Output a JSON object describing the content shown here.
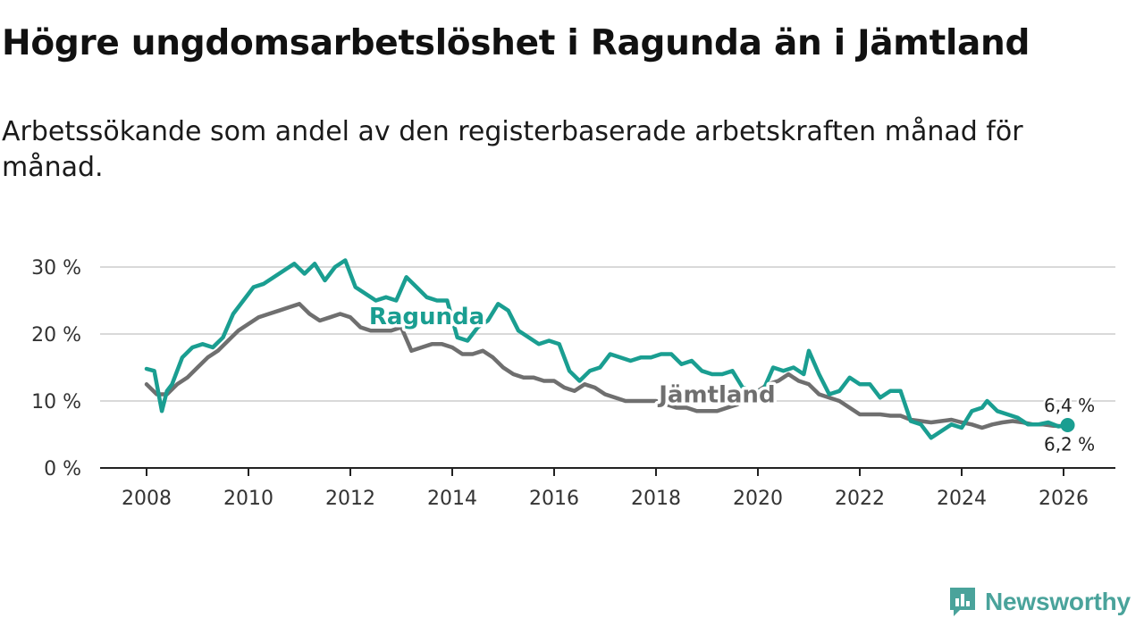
{
  "title": "Högre ungdomsarbetslöshet i Ragunda än i Jämtland",
  "subtitle": "Arbetssökande som andel av den registerbaserade arbetskraften månad för månad.",
  "brand": {
    "name": "Newsworthy",
    "icon": "newsworthy-logo-icon",
    "color": "#4aa39b"
  },
  "chart_data": {
    "type": "line",
    "title": "Högre ungdomsarbetslöshet i Ragunda än i Jämtland",
    "xlabel": "",
    "ylabel": "",
    "xlim": [
      2007.9,
      2026.2
    ],
    "ylim": [
      0,
      30
    ],
    "x_ticks": [
      2008,
      2010,
      2012,
      2014,
      2016,
      2018,
      2020,
      2022,
      2024,
      2026
    ],
    "x_tick_labels": [
      "2008",
      "2010",
      "2012",
      "2014",
      "2016",
      "2018",
      "2020",
      "2022",
      "2024",
      "2026"
    ],
    "y_ticks": [
      0,
      10,
      20,
      30
    ],
    "y_tick_labels": [
      "0 %",
      "10 %",
      "20 %",
      "30 %"
    ],
    "grid": "horizontal",
    "series": [
      {
        "name": "Ragunda",
        "color": "#1a9e91",
        "label_anchor": [
          2013.5,
          21.5
        ],
        "end_label": "6,4 %",
        "x": [
          2008.0,
          2008.15,
          2008.3,
          2008.4,
          2008.5,
          2008.7,
          2008.9,
          2009.1,
          2009.3,
          2009.5,
          2009.7,
          2009.9,
          2010.1,
          2010.3,
          2010.5,
          2010.7,
          2010.9,
          2011.1,
          2011.3,
          2011.5,
          2011.7,
          2011.9,
          2012.1,
          2012.3,
          2012.5,
          2012.7,
          2012.9,
          2013.1,
          2013.3,
          2013.5,
          2013.7,
          2013.9,
          2014.1,
          2014.3,
          2014.5,
          2014.7,
          2014.9,
          2015.1,
          2015.3,
          2015.5,
          2015.7,
          2015.9,
          2016.1,
          2016.3,
          2016.5,
          2016.7,
          2016.9,
          2017.1,
          2017.3,
          2017.5,
          2017.7,
          2017.9,
          2018.1,
          2018.3,
          2018.5,
          2018.7,
          2018.9,
          2019.1,
          2019.3,
          2019.5,
          2019.7,
          2019.9,
          2020.1,
          2020.3,
          2020.5,
          2020.7,
          2020.9,
          2021.0,
          2021.2,
          2021.4,
          2021.6,
          2021.8,
          2022.0,
          2022.2,
          2022.4,
          2022.6,
          2022.8,
          2023.0,
          2023.2,
          2023.4,
          2023.6,
          2023.8,
          2024.0,
          2024.2,
          2024.4,
          2024.5,
          2024.7,
          2024.9,
          2025.1,
          2025.3,
          2025.5,
          2025.7,
          2025.9,
          2026.08
        ],
        "values": [
          14.8,
          14.5,
          8.5,
          11.5,
          12.5,
          16.5,
          18.0,
          18.5,
          18.0,
          19.5,
          23.0,
          25.0,
          27.0,
          27.5,
          28.5,
          29.5,
          30.5,
          29.0,
          30.5,
          28.0,
          30.0,
          31.0,
          27.0,
          26.0,
          25.0,
          25.5,
          25.0,
          28.5,
          27.0,
          25.5,
          25.0,
          25.0,
          19.5,
          19.0,
          21.0,
          22.0,
          24.5,
          23.5,
          20.5,
          19.5,
          18.5,
          19.0,
          18.5,
          14.5,
          13.0,
          14.5,
          15.0,
          17.0,
          16.5,
          16.0,
          16.5,
          16.5,
          17.0,
          17.0,
          15.5,
          16.0,
          14.5,
          14.0,
          14.0,
          14.5,
          12.0,
          11.5,
          11.5,
          15.0,
          14.5,
          15.0,
          14.0,
          17.5,
          14.0,
          11.0,
          11.5,
          13.5,
          12.5,
          12.5,
          10.5,
          11.5,
          11.5,
          7.0,
          6.5,
          4.5,
          5.5,
          6.5,
          6.0,
          8.5,
          9.0,
          10.0,
          8.5,
          8.0,
          7.5,
          6.5,
          6.5,
          6.8,
          6.2,
          6.4
        ]
      },
      {
        "name": "Jämtland",
        "color": "#6f6f6f",
        "label_anchor": [
          2019.2,
          9.8
        ],
        "end_label": "6,2 %",
        "x": [
          2008.0,
          2008.2,
          2008.4,
          2008.6,
          2008.8,
          2009.0,
          2009.2,
          2009.4,
          2009.6,
          2009.8,
          2010.0,
          2010.2,
          2010.4,
          2010.6,
          2010.8,
          2011.0,
          2011.2,
          2011.4,
          2011.6,
          2011.8,
          2012.0,
          2012.2,
          2012.4,
          2012.6,
          2012.8,
          2013.0,
          2013.2,
          2013.4,
          2013.6,
          2013.8,
          2014.0,
          2014.2,
          2014.4,
          2014.6,
          2014.8,
          2015.0,
          2015.2,
          2015.4,
          2015.6,
          2015.8,
          2016.0,
          2016.2,
          2016.4,
          2016.6,
          2016.8,
          2017.0,
          2017.2,
          2017.4,
          2017.6,
          2017.8,
          2018.0,
          2018.2,
          2018.4,
          2018.6,
          2018.8,
          2019.0,
          2019.2,
          2019.4,
          2019.6,
          2019.8,
          2020.0,
          2020.2,
          2020.4,
          2020.6,
          2020.8,
          2021.0,
          2021.2,
          2021.4,
          2021.6,
          2021.8,
          2022.0,
          2022.2,
          2022.4,
          2022.6,
          2022.8,
          2023.0,
          2023.2,
          2023.4,
          2023.6,
          2023.8,
          2024.0,
          2024.2,
          2024.4,
          2024.6,
          2024.8,
          2025.0,
          2025.2,
          2025.4,
          2025.6,
          2025.8,
          2026.08
        ],
        "values": [
          12.5,
          11.0,
          11.0,
          12.5,
          13.5,
          15.0,
          16.5,
          17.5,
          19.0,
          20.5,
          21.5,
          22.5,
          23.0,
          23.5,
          24.0,
          24.5,
          23.0,
          22.0,
          22.5,
          23.0,
          22.5,
          21.0,
          20.5,
          20.5,
          20.5,
          21.0,
          17.5,
          18.0,
          18.5,
          18.5,
          18.0,
          17.0,
          17.0,
          17.5,
          16.5,
          15.0,
          14.0,
          13.5,
          13.5,
          13.0,
          13.0,
          12.0,
          11.5,
          12.5,
          12.0,
          11.0,
          10.5,
          10.0,
          10.0,
          10.0,
          10.0,
          9.5,
          9.0,
          9.0,
          8.5,
          8.5,
          8.5,
          9.0,
          9.5,
          10.5,
          11.5,
          12.5,
          13.0,
          14.0,
          13.0,
          12.5,
          11.0,
          10.5,
          10.0,
          9.0,
          8.0,
          8.0,
          8.0,
          7.8,
          7.8,
          7.2,
          7.0,
          6.8,
          7.0,
          7.2,
          6.8,
          6.5,
          6.0,
          6.5,
          6.8,
          7.0,
          6.8,
          6.5,
          6.5,
          6.3,
          6.2
        ]
      }
    ]
  }
}
